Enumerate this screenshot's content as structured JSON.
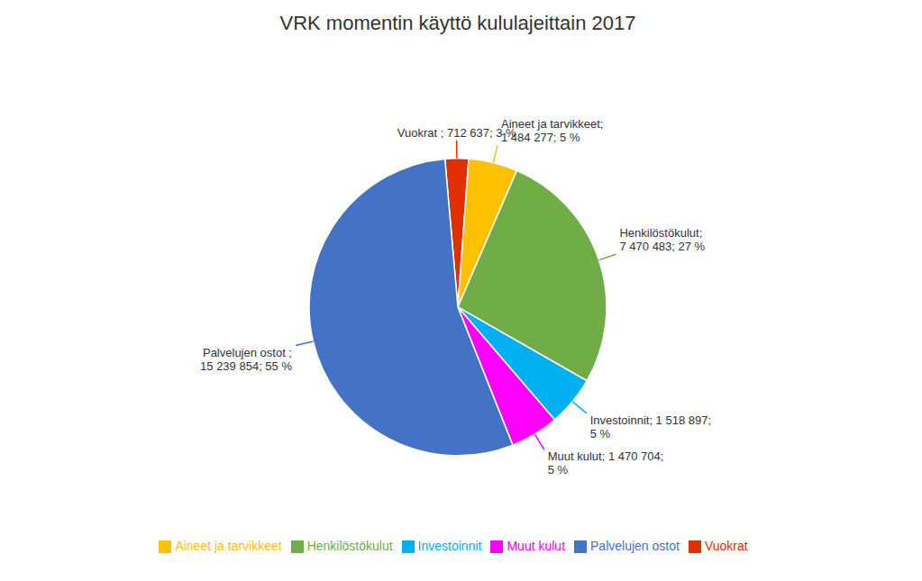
{
  "chart_data": {
    "type": "pie",
    "title": "VRK momentin käyttö kululajeittain 2017",
    "categories": [
      "Vuokrat",
      "Aineet ja tarvikkeet",
      "Henkilöstökulut",
      "Investoinnit",
      "Muut kulut",
      "Palvelujen ostot"
    ],
    "values": [
      712637,
      1484277,
      7470483,
      1518897,
      1470704,
      15239854
    ],
    "value_labels": [
      "Vuokrat ; 712 637; 3 %",
      "Aineet ja tarvikkeet;\n1 484 277; 5 %",
      "Henkilöstökulut;\n7 470 483; 27 %",
      "Investoinnit; 1 518 897;\n5 %",
      "Muut kulut; 1 470 704;\n5 %",
      "Palvelujen ostot ;\n15 239 854; 55 %"
    ],
    "colors": [
      "#E03000",
      "#FFC000",
      "#70AD47",
      "#00B0F0",
      "#FF00FF",
      "#4472C4"
    ],
    "data_labels": true,
    "legend": "bottom"
  }
}
